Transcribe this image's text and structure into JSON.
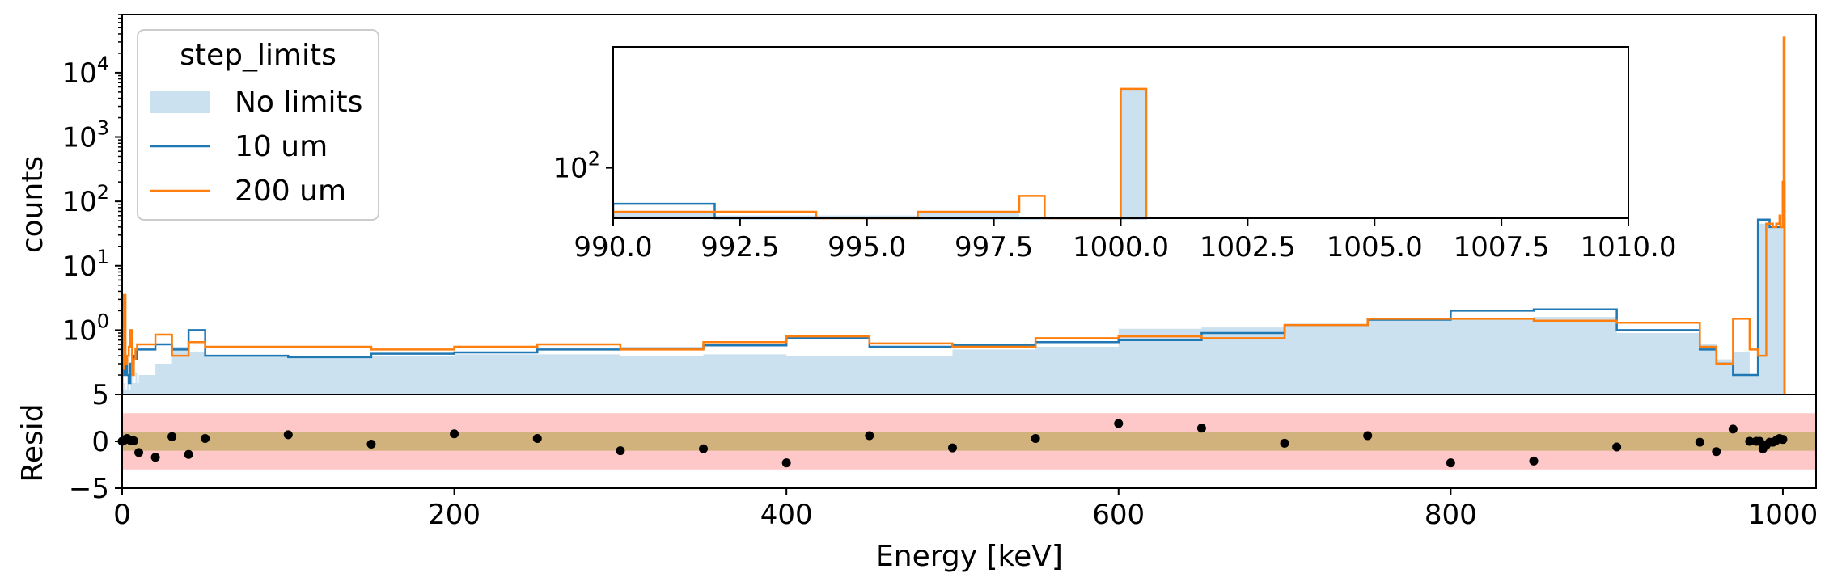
{
  "chart_data": {
    "type": "histogram",
    "xlabel": "Energy [keV]",
    "colors": {
      "no_limits": "#cce1ef",
      "um10": "#1f77b4",
      "um200": "#ff7f0e",
      "band1": "#ffc8c8",
      "band2": "#d2b27c",
      "resid_point": "#000000"
    },
    "legend": {
      "title": "step_limits",
      "location": "upper-left",
      "entries": [
        {
          "label": "No limits",
          "style": "filled"
        },
        {
          "label": "10 um",
          "style": "step"
        },
        {
          "label": "200 um",
          "style": "step"
        }
      ]
    },
    "main": {
      "ylabel": "counts",
      "yscale": "log",
      "xlim": [
        0,
        1020
      ],
      "ylim": [
        0.1,
        80000
      ],
      "yticks": [
        {
          "base": "10",
          "exp": "0",
          "value": 1
        },
        {
          "base": "10",
          "exp": "1",
          "value": 10
        },
        {
          "base": "10",
          "exp": "2",
          "value": 100
        },
        {
          "base": "10",
          "exp": "3",
          "value": 1000
        },
        {
          "base": "10",
          "exp": "4",
          "value": 10000
        }
      ],
      "edges": [
        0,
        1,
        2,
        3,
        4,
        5,
        6,
        7,
        8,
        9,
        10,
        20,
        30,
        40,
        50,
        100,
        150,
        200,
        250,
        300,
        350,
        400,
        450,
        500,
        550,
        600,
        650,
        700,
        750,
        800,
        850,
        900,
        950,
        960,
        970,
        980,
        985,
        990,
        992,
        994,
        996,
        998,
        998.5,
        1000,
        1000.5,
        1001
      ],
      "series": [
        {
          "name": "No limits",
          "values": [
            0.12,
            0.15,
            0.12,
            0.2,
            0.12,
            0.15,
            0.2,
            0.15,
            0.22,
            0.15,
            0.2,
            0.3,
            0.55,
            0.45,
            0.4,
            0.38,
            0.4,
            0.42,
            0.42,
            0.4,
            0.42,
            0.4,
            0.4,
            0.5,
            0.55,
            1.05,
            1.1,
            1.15,
            1.5,
            1.55,
            1.6,
            0.9,
            0.6,
            0.35,
            0.45,
            0.2,
            45,
            45,
            42,
            42,
            42,
            42,
            42,
            200,
            200
          ]
        },
        {
          "name": "10 um",
          "values": [
            0.25,
            0.2,
            0.35,
            0.2,
            0.15,
            0.3,
            0.3,
            0.4,
            0.35,
            0.5,
            0.5,
            0.6,
            0.5,
            1.0,
            0.4,
            0.38,
            0.43,
            0.45,
            0.5,
            0.52,
            0.58,
            0.75,
            0.55,
            0.58,
            0.65,
            0.7,
            0.9,
            1.2,
            1.45,
            2.0,
            2.1,
            1.0,
            0.5,
            0.3,
            0.2,
            0.2,
            52,
            52,
            40,
            40,
            40,
            40,
            40,
            200,
            200
          ]
        },
        {
          "name": "200 um",
          "values": [
            0.25,
            3.5,
            0.3,
            0.4,
            0.55,
            1.0,
            0.2,
            0.35,
            0.5,
            0.6,
            0.6,
            0.85,
            0.4,
            0.65,
            0.55,
            0.55,
            0.5,
            0.55,
            0.6,
            0.5,
            0.65,
            0.8,
            0.62,
            0.55,
            0.75,
            0.8,
            0.75,
            1.2,
            1.5,
            1.5,
            1.4,
            1.3,
            0.55,
            0.3,
            1.5,
            0.5,
            0.4,
            45,
            45,
            40,
            45,
            60,
            40,
            200,
            35000
          ]
        }
      ]
    },
    "inset": {
      "xlim": [
        990,
        1010
      ],
      "xticks": [
        "990.0",
        "992.5",
        "995.0",
        "997.5",
        "1000.0",
        "1002.5",
        "1005.0",
        "1007.5",
        "1010.0"
      ],
      "ylim": [
        40,
        900
      ],
      "yticks": [
        {
          "base": "10",
          "exp": "2",
          "value": 100
        }
      ],
      "series": [
        {
          "name": "No limits",
          "edges": [
            990,
            992,
            996,
            998,
            1000,
            1000.5
          ],
          "values": [
            45,
            42,
            45,
            40,
            420
          ]
        },
        {
          "name": "10 um",
          "edges": [
            990,
            992,
            998,
            1000,
            1000.5
          ],
          "values": [
            52,
            40,
            40,
            40,
            420
          ]
        },
        {
          "name": "200 um",
          "edges": [
            990,
            994,
            996,
            998,
            998.5,
            1000,
            1000.5
          ],
          "values": [
            45,
            40,
            45,
            60,
            40,
            420
          ]
        }
      ]
    },
    "resid": {
      "ylabel": "Resid",
      "ylim": [
        -5,
        5
      ],
      "yticks": [
        "5",
        "0",
        "−5"
      ],
      "yticks_values": [
        5,
        0,
        -5
      ],
      "xticks": [
        "0",
        "200",
        "400",
        "600",
        "800",
        "1000"
      ],
      "xticks_values": [
        0,
        200,
        400,
        600,
        800,
        1000
      ],
      "bands": [
        {
          "y0": -3,
          "y1": 3,
          "color": "#ffc8c8"
        },
        {
          "y0": -1,
          "y1": 1,
          "color": "#d2b27c"
        }
      ],
      "points": [
        [
          0,
          0
        ],
        [
          1,
          0.1
        ],
        [
          2,
          0.2
        ],
        [
          3,
          0.3
        ],
        [
          5,
          0.1
        ],
        [
          7,
          0.05
        ],
        [
          10,
          -1.2
        ],
        [
          20,
          -1.7
        ],
        [
          30,
          0.5
        ],
        [
          40,
          -1.4
        ],
        [
          50,
          0.3
        ],
        [
          100,
          0.7
        ],
        [
          150,
          -0.3
        ],
        [
          200,
          0.8
        ],
        [
          250,
          0.3
        ],
        [
          300,
          -1.0
        ],
        [
          350,
          -0.8
        ],
        [
          400,
          -2.3
        ],
        [
          450,
          0.6
        ],
        [
          500,
          -0.7
        ],
        [
          550,
          0.3
        ],
        [
          600,
          1.9
        ],
        [
          650,
          1.4
        ],
        [
          700,
          -0.2
        ],
        [
          750,
          0.6
        ],
        [
          800,
          -2.3
        ],
        [
          850,
          -2.1
        ],
        [
          900,
          -0.6
        ],
        [
          950,
          -0.1
        ],
        [
          960,
          -1.1
        ],
        [
          970,
          1.3
        ],
        [
          980,
          0
        ],
        [
          984,
          0
        ],
        [
          986,
          0
        ],
        [
          988,
          -0.8
        ],
        [
          990,
          -0.4
        ],
        [
          992,
          -0.1
        ],
        [
          994,
          -0.1
        ],
        [
          996,
          0.1
        ],
        [
          998,
          0.3
        ],
        [
          1000,
          0.2
        ]
      ]
    }
  }
}
